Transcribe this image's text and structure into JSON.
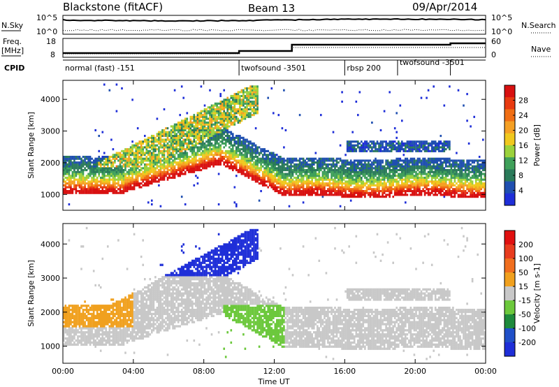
{
  "header": {
    "station": "Blackstone (fitACF)",
    "beam": "Beam 13",
    "date": "09/Apr/2014"
  },
  "panels": {
    "nsky_label": "N.Sky",
    "nsearch_label": "N.Search",
    "freq_label_1": "Freq.",
    "freq_label_2": "[MHz]",
    "nave_label": "Nave",
    "cpid_label": "CPID",
    "nsky_ticks": [
      "10^5",
      "10^0"
    ],
    "nsearch_ticks": [
      "10^5",
      "10^0"
    ],
    "freq_ticks": [
      "18",
      "8"
    ],
    "nave_ticks": [
      "60",
      "0"
    ]
  },
  "cpid_segments": [
    {
      "label": "normal (fast) -151",
      "start": 0,
      "end": 10
    },
    {
      "label": "twofsound -3501",
      "start": 10,
      "end": 16
    },
    {
      "label": "rbsp 200",
      "start": 16,
      "end": 19
    },
    {
      "label": "twofsound -3501",
      "start": 19,
      "end": 22
    },
    {
      "label": "",
      "start": 22,
      "end": 24
    }
  ],
  "chart_data": [
    {
      "type": "heatmap",
      "ylabel": "Slant Range [km]",
      "xlabel": "Time UT",
      "x_range": [
        0,
        24
      ],
      "ylim": [
        500,
        4600
      ],
      "y_ticks": [
        "1000",
        "2000",
        "3000",
        "4000"
      ],
      "x_ticks": [
        "00:00",
        "04:00",
        "08:00",
        "12:00",
        "16:00",
        "20:00",
        "00:00"
      ],
      "colorbar": {
        "label": "Power [dB]",
        "ticks": [
          "4",
          "8",
          "12",
          "16",
          "20",
          "24",
          "28"
        ],
        "colors": [
          "#1e2ed8",
          "#1f4fb0",
          "#2a7a5a",
          "#3fa05a",
          "#9bd23c",
          "#f0c81e",
          "#f5a024",
          "#f06e14",
          "#e83a10",
          "#d81010"
        ]
      }
    },
    {
      "type": "heatmap",
      "ylabel": "Slant Range [km]",
      "xlabel": "Time UT",
      "x_range": [
        0,
        24
      ],
      "ylim": [
        500,
        4600
      ],
      "y_ticks": [
        "1000",
        "2000",
        "3000",
        "4000"
      ],
      "x_ticks": [
        "00:00",
        "04:00",
        "08:00",
        "12:00",
        "16:00",
        "20:00",
        "00:00"
      ],
      "colorbar": {
        "label": "Velocity [m s-1]",
        "ticks": [
          "200",
          "100",
          "50",
          "15",
          "-15",
          "-50",
          "-100",
          "-200"
        ],
        "colors": [
          "#1e2ed8",
          "#2050c8",
          "#1e8a3c",
          "#6cc83c",
          "#c8c8c8",
          "#f0a01e",
          "#f06e1e",
          "#e83c1e",
          "#e01010"
        ]
      }
    }
  ]
}
